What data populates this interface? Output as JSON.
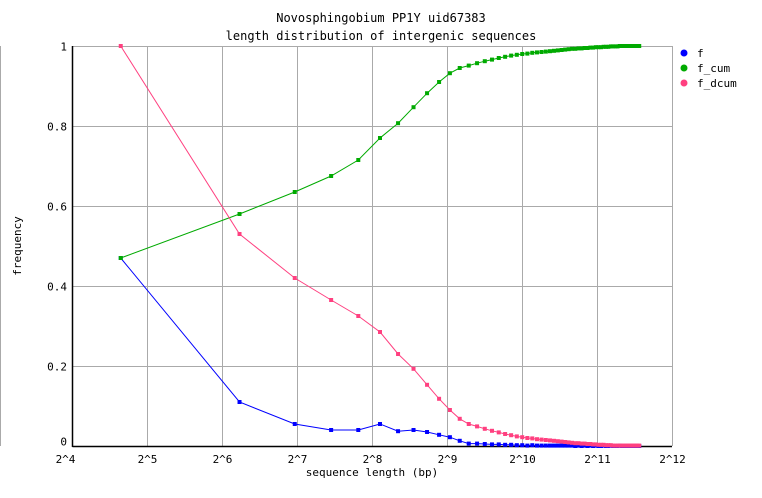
{
  "chart_data": {
    "type": "line",
    "title": [
      "Novosphingobium PP1Y uid67383",
      "length distribution of intergenic sequences"
    ],
    "xlabel": "sequence length (bp)",
    "ylabel": "frequency",
    "x_scale": "log2",
    "xlim": [
      16,
      4096
    ],
    "ylim": [
      0,
      1
    ],
    "x_ticks": [
      16,
      32,
      64,
      128,
      256,
      512,
      1024,
      2048,
      4096
    ],
    "x_tick_labels": [
      "2^4",
      "2^5",
      "2^6",
      "2^7",
      "2^8",
      "2^9",
      "2^10",
      "2^11",
      "2^12"
    ],
    "y_ticks": [
      0,
      0.2,
      0.4,
      0.6,
      0.8,
      1
    ],
    "y_tick_labels": [
      "0",
      "0.2",
      "0.4",
      "0.6",
      "0.8",
      "1"
    ],
    "grid": true,
    "legend_position": "right",
    "x": [
      25,
      75,
      125,
      175,
      225,
      275,
      325,
      375,
      425,
      475,
      525,
      575,
      625,
      675,
      725,
      775,
      825,
      875,
      925,
      975,
      1025,
      1075,
      1125,
      1175,
      1225,
      1275,
      1325,
      1375,
      1425,
      1475,
      1525,
      1575,
      1625,
      1675,
      1725,
      1775,
      1825,
      1875,
      1925,
      1975,
      2025,
      2075,
      2125,
      2175,
      2225,
      2275,
      2325,
      2375,
      2425,
      2475,
      2525,
      2575,
      2625,
      2675,
      2725,
      2775,
      2825,
      2875,
      2925,
      2975,
      3025
    ],
    "series": [
      {
        "name": "f",
        "color": "#0000ff",
        "values": [
          0.47,
          0.11,
          0.055,
          0.04,
          0.04,
          0.055,
          0.037,
          0.04,
          0.035,
          0.028,
          0.022,
          0.013,
          0.006,
          0.006,
          0.005,
          0.004,
          0.004,
          0.003,
          0.003,
          0.002,
          0.002,
          0.001,
          0.002,
          0.001,
          0.001,
          0.001,
          0.001,
          0.001,
          0.001,
          0.001,
          0.001,
          0.001,
          0.001,
          0,
          0.001,
          0,
          0.001,
          0,
          0.001,
          0,
          0.001,
          0,
          0,
          0.001,
          0,
          0,
          0.001,
          0,
          0,
          0,
          0.001,
          0,
          0,
          0,
          0,
          0,
          0,
          0,
          0,
          0,
          0
        ]
      },
      {
        "name": "f_cum",
        "color": "#00aa00",
        "values": [
          0.47,
          0.58,
          0.635,
          0.675,
          0.715,
          0.77,
          0.807,
          0.847,
          0.882,
          0.91,
          0.932,
          0.945,
          0.951,
          0.957,
          0.962,
          0.966,
          0.97,
          0.973,
          0.976,
          0.978,
          0.98,
          0.981,
          0.983,
          0.984,
          0.985,
          0.986,
          0.987,
          0.988,
          0.989,
          0.99,
          0.991,
          0.992,
          0.993,
          0.993,
          0.994,
          0.994,
          0.995,
          0.995,
          0.996,
          0.996,
          0.997,
          0.997,
          0.997,
          0.998,
          0.998,
          0.998,
          0.999,
          0.999,
          0.999,
          0.999,
          1.0,
          1.0,
          1.0,
          1.0,
          1.0,
          1.0,
          1.0,
          1.0,
          1.0,
          1.0,
          1.0
        ]
      },
      {
        "name": "f_dcum",
        "color": "#ff4080",
        "values": [
          1.0,
          0.53,
          0.42,
          0.365,
          0.325,
          0.285,
          0.23,
          0.193,
          0.153,
          0.118,
          0.09,
          0.068,
          0.055,
          0.049,
          0.043,
          0.038,
          0.034,
          0.03,
          0.027,
          0.024,
          0.022,
          0.02,
          0.019,
          0.017,
          0.016,
          0.015,
          0.014,
          0.013,
          0.012,
          0.011,
          0.01,
          0.009,
          0.008,
          0.007,
          0.007,
          0.006,
          0.006,
          0.005,
          0.005,
          0.004,
          0.004,
          0.003,
          0.003,
          0.003,
          0.002,
          0.002,
          0.002,
          0.001,
          0.001,
          0.001,
          0.001,
          0.001,
          0.001,
          0.001,
          0.001,
          0.001,
          0.001,
          0.001,
          0.001,
          0.001,
          0.001
        ]
      }
    ]
  }
}
